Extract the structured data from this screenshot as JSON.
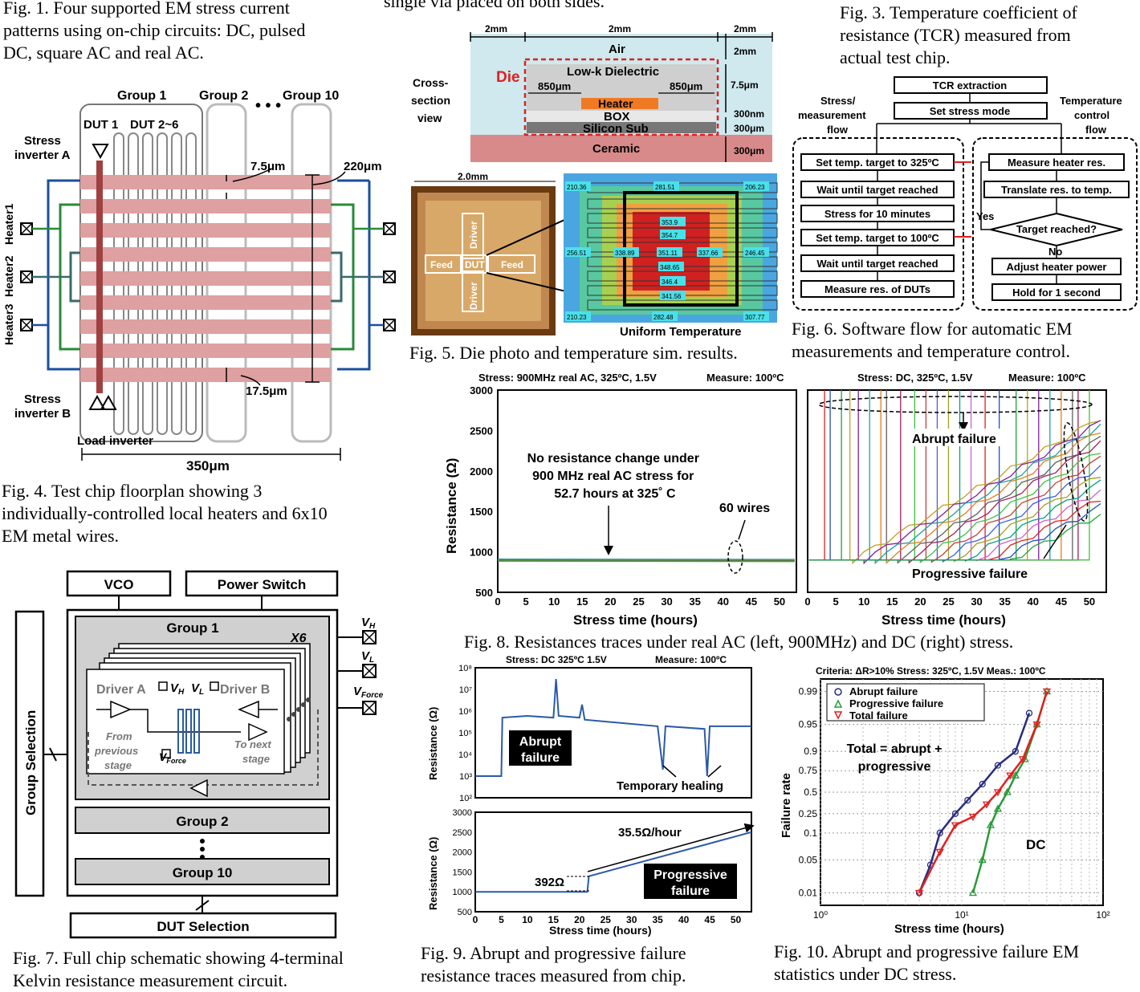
{
  "captions": {
    "fig1": "Fig. 1. Four supported EM stress current patterns using on-chip circuits: DC, pulsed DC, square AC and real AC.",
    "fig1_lines": [
      "Fig. 1. Four supported EM stress current",
      "patterns using on-chip circuits: DC, pulsed",
      "DC, square AC and real AC."
    ],
    "fig2_tail": "single via placed on both sides.",
    "fig3_lines": [
      "Fig. 3. Temperature coefficient of",
      "resistance (TCR) measured from",
      "actual test chip."
    ],
    "fig4_lines": [
      "Fig.   4.   Test   chip   floorplan   showing   3",
      "individually-controlled  local  heaters  and  6x10",
      "EM metal wires."
    ],
    "fig5": "Fig. 5. Die photo and temperature sim. results.",
    "fig6_lines": [
      "Fig.  6.  Software  flow  for  automatic  EM",
      "measurements and temperature control."
    ],
    "fig7_lines": [
      "Fig. 7. Full chip schematic showing 4-terminal",
      "Kelvin resistance measurement circuit."
    ],
    "fig8": "Fig. 8. Resistances traces under real AC (left, 900MHz) and DC (right) stress.",
    "fig9_lines": [
      "Fig.  9.  Abrupt  and  progressive  failure",
      "resistance traces measured from chip."
    ],
    "fig10_lines": [
      "Fig. 10. Abrupt and progressive failure EM",
      "statistics under DC stress."
    ]
  },
  "floorplan": {
    "group1": "Group 1",
    "group2": "Group 2",
    "group10": "Group 10",
    "dots": "• • •",
    "dut1": "DUT 1",
    "dut2_6": "DUT 2~6",
    "stress_a": [
      "Stress",
      "inverter A"
    ],
    "stress_b": [
      "Stress",
      "inverter B"
    ],
    "load_inv": "Load inverter",
    "dim_75": "7.5μm",
    "dim_220": "220μm",
    "dim_175": "17.5μm",
    "dim_350": "350μm",
    "heaters": [
      "Heater1",
      "Heater2",
      "Heater3"
    ]
  },
  "cross_section": {
    "dims_top": [
      "2mm",
      "2mm",
      "2mm"
    ],
    "layers": [
      "Air",
      "Low-k Dielectric",
      "Heater",
      "BOX",
      "Silicon Sub",
      "Ceramic"
    ],
    "die": "Die",
    "w850": [
      "850μm",
      "850μm"
    ],
    "view": [
      "Cross-",
      "section",
      "view"
    ],
    "dims_right": [
      "2mm",
      "7.5μm",
      "300nm",
      "300μm",
      "300μm"
    ]
  },
  "die_photo": {
    "width": "2.0mm",
    "labels": [
      "Feed",
      "DUT",
      "Feed",
      "Driver",
      "Driver"
    ],
    "temps": [
      "210.36",
      "281.51",
      "206.23",
      "353.9",
      "354.7",
      "256.51",
      "338.89",
      "351.11",
      "337.66",
      "246.45",
      "348.65",
      "346.4",
      "341.56",
      "210.23",
      "282.48",
      "307.77"
    ],
    "uniform": "Uniform Temperature"
  },
  "flow": {
    "tcr": "TCR extraction",
    "stress_mode": "Set stress mode",
    "left_title": [
      "Stress/",
      "measurement",
      "flow"
    ],
    "right_title": [
      "Temperature",
      "control",
      "flow"
    ],
    "left_steps": [
      "Set temp. target to 325ºC",
      "Wait until target reached",
      "Stress for 10 minutes",
      "Set temp. target to 100ºC",
      "Wait until target reached",
      "Measure res. of DUTs"
    ],
    "right_steps": [
      "Measure heater res.",
      "Translate res. to temp.",
      "Target reached?",
      "Adjust heater power",
      "Hold for 1 second"
    ],
    "yes": "Yes",
    "no": "No"
  },
  "fig8_left": {
    "title": "Stress: 900MHz real AC, 325ºC, 1.5V",
    "measure": "Measure: 100ºC",
    "annot": [
      "No resistance change under",
      "900 MHz real AC stress for",
      "52.7 hours at 325˚ C"
    ],
    "wires": "60 wires",
    "ylabel": "Resistance (Ω)",
    "xlabel": "Stress time (hours)",
    "yticks": [
      "3000",
      "2500",
      "2000",
      "1500",
      "1000",
      "500"
    ],
    "xticks": [
      "0",
      "5",
      "10",
      "15",
      "20",
      "25",
      "30",
      "35",
      "40",
      "45",
      "50"
    ]
  },
  "fig8_right": {
    "title": "Stress: DC, 325ºC, 1.5V",
    "measure": "Measure: 100ºC",
    "abrupt": "Abrupt failure",
    "progressive": "Progressive failure",
    "xlabel": "Stress time (hours)",
    "xticks": [
      "0",
      "5",
      "10",
      "15",
      "20",
      "25",
      "30",
      "35",
      "40",
      "45",
      "50"
    ]
  },
  "schematic": {
    "vco": "VCO",
    "power": "Power Switch",
    "group1": "Group 1",
    "x6": "X6",
    "driver_a": "Driver A",
    "driver_b": "Driver B",
    "vh": "V",
    "vh_sub": "H",
    "vl": "V",
    "vl_sub": "L",
    "from_prev": [
      "From",
      "previous",
      "stage"
    ],
    "to_next": [
      "To next",
      "stage"
    ],
    "vforce": "V",
    "vforce_sub": "Force",
    "group2": "Group 2",
    "group10": "Group 10",
    "group_sel": "Group Selection",
    "dut_sel": "DUT Selection",
    "out_vh": "V",
    "out_vh_sub": "H",
    "out_vl": "V",
    "out_vl_sub": "L",
    "out_vf": "V",
    "out_vf_sub": "Force"
  },
  "fig9": {
    "title": "Stress: DC 325ºC 1.5V",
    "measure": "Measure: 100ºC",
    "top_yticks": [
      "10⁸",
      "10⁷",
      "10⁶",
      "10⁵",
      "10⁴",
      "10³",
      "10²"
    ],
    "abrupt": [
      "Abrupt",
      "failure"
    ],
    "healing": "Temporary healing",
    "bot_yticks": [
      "3000",
      "2500",
      "2000",
      "1500",
      "1000",
      "500"
    ],
    "rate": "35.5Ω/hour",
    "step": "392Ω",
    "progressive": [
      "Progressive",
      "failure"
    ],
    "xticks": [
      "0",
      "5",
      "10",
      "15",
      "20",
      "25",
      "30",
      "35",
      "40",
      "45",
      "50"
    ],
    "xlabel": "Stress time (hours)",
    "ylabel": "Resistance (Ω)"
  },
  "fig10": {
    "criteria": "Criteria: ΔR>10%   Stress: 325ºC, 1.5V   Meas.: 100ºC",
    "legend": [
      "Abrupt failure",
      "Progressive failure",
      "Total failure"
    ],
    "total_eq": [
      "Total = abrupt +",
      "progressive"
    ],
    "dc": "DC",
    "yticks": [
      "0.99",
      "0.95",
      "0.9",
      "0.75",
      "0.5",
      "0.25",
      "0.1",
      "0.05",
      "0.01"
    ],
    "xticks": [
      "10⁰",
      "10¹",
      "10²"
    ],
    "ylabel": "Failure rate",
    "xlabel": "Stress time (hours)"
  },
  "chart_data": [
    {
      "type": "line",
      "title": "Stress: 900MHz real AC, 325ºC, 1.5V",
      "xlabel": "Stress time (hours)",
      "ylabel": "Resistance (Ω)",
      "xlim": [
        0,
        53
      ],
      "ylim": [
        500,
        3000
      ],
      "series": [
        {
          "values": [
            [
              0,
              900
            ],
            [
              52.7,
              895
            ]
          ]
        }
      ]
    },
    {
      "type": "line",
      "title": "Stress: DC, 325ºC, 1.5V",
      "xlabel": "Stress time (hours)",
      "xlim": [
        0,
        53
      ],
      "ylim": [
        500,
        3000
      ],
      "abrupt_fail_times": [
        3,
        4,
        6,
        7.5,
        9,
        11,
        13,
        14,
        16.5,
        19,
        21,
        23,
        25,
        27,
        29,
        31.5,
        34,
        37,
        39,
        41,
        43,
        45,
        47,
        48,
        50
      ],
      "progressive_series": [
        {
          "start": 8,
          "end_value": 2700
        },
        {
          "start": 10,
          "end_value": 2650
        },
        {
          "start": 12,
          "end_value": 2600
        },
        {
          "start": 14,
          "end_value": 2550
        },
        {
          "start": 16,
          "end_value": 2450
        },
        {
          "start": 18,
          "end_value": 2400
        },
        {
          "start": 20,
          "end_value": 2300
        },
        {
          "start": 22,
          "end_value": 2200
        },
        {
          "start": 24,
          "end_value": 2100
        },
        {
          "start": 26,
          "end_value": 2000
        },
        {
          "start": 28,
          "end_value": 1900
        },
        {
          "start": 30,
          "end_value": 1800
        },
        {
          "start": 32,
          "end_value": 1700
        },
        {
          "start": 34,
          "end_value": 1600
        },
        {
          "start": 36,
          "end_value": 1500
        }
      ]
    },
    {
      "type": "line",
      "title": "Stress: DC 325ºC 1.5V",
      "ylabel": "Resistance (Ω)",
      "yscale": "log",
      "xlim": [
        0,
        53
      ],
      "ylim": [
        100,
        100000000
      ],
      "series": [
        {
          "values": [
            [
              0,
              1000
            ],
            [
              5,
              1000
            ],
            [
              5.2,
              500000
            ],
            [
              10,
              600000
            ],
            [
              15,
              500000
            ],
            [
              15.5,
              30000000
            ],
            [
              16,
              600000
            ],
            [
              20,
              500000
            ],
            [
              20.5,
              2000000
            ],
            [
              21,
              400000
            ],
            [
              35,
              200000
            ],
            [
              36,
              2000
            ],
            [
              36.5,
              200000
            ],
            [
              44,
              150000
            ],
            [
              44.5,
              1000
            ],
            [
              45,
              200000
            ],
            [
              53,
              200000
            ]
          ]
        }
      ]
    },
    {
      "type": "line",
      "xlabel": "Stress time (hours)",
      "ylabel": "Resistance (Ω)",
      "xlim": [
        0,
        53
      ],
      "ylim": [
        500,
        3000
      ],
      "series": [
        {
          "values": [
            [
              0,
              1000
            ],
            [
              21.5,
              1000
            ],
            [
              21.8,
              1392
            ],
            [
              53,
              2500
            ]
          ]
        }
      ]
    },
    {
      "type": "scatter",
      "title": "Criteria: ΔR>10%   Stress: 325ºC, 1.5V   Meas.: 100ºC",
      "xlabel": "Stress time (hours)",
      "ylabel": "Failure rate",
      "xscale": "log",
      "xlim": [
        1,
        100
      ],
      "series": [
        {
          "name": "Abrupt failure",
          "values": [
            [
              5,
              0.01
            ],
            [
              6,
              0.04
            ],
            [
              7,
              0.1
            ],
            [
              9,
              0.25
            ],
            [
              11,
              0.4
            ],
            [
              14,
              0.6
            ],
            [
              18,
              0.8
            ],
            [
              24,
              0.9
            ],
            [
              30,
              0.97
            ]
          ]
        },
        {
          "name": "Progressive failure",
          "values": [
            [
              12,
              0.01
            ],
            [
              14,
              0.05
            ],
            [
              16,
              0.15
            ],
            [
              18,
              0.3
            ],
            [
              21,
              0.5
            ],
            [
              24,
              0.7
            ],
            [
              28,
              0.85
            ],
            [
              34,
              0.95
            ],
            [
              40,
              0.99
            ]
          ]
        },
        {
          "name": "Total failure",
          "values": [
            [
              5,
              0.01
            ],
            [
              7,
              0.07
            ],
            [
              9,
              0.15
            ],
            [
              12,
              0.22
            ],
            [
              15,
              0.35
            ],
            [
              18,
              0.5
            ],
            [
              22,
              0.7
            ],
            [
              27,
              0.85
            ],
            [
              34,
              0.95
            ],
            [
              40,
              0.99
            ]
          ]
        }
      ]
    }
  ]
}
